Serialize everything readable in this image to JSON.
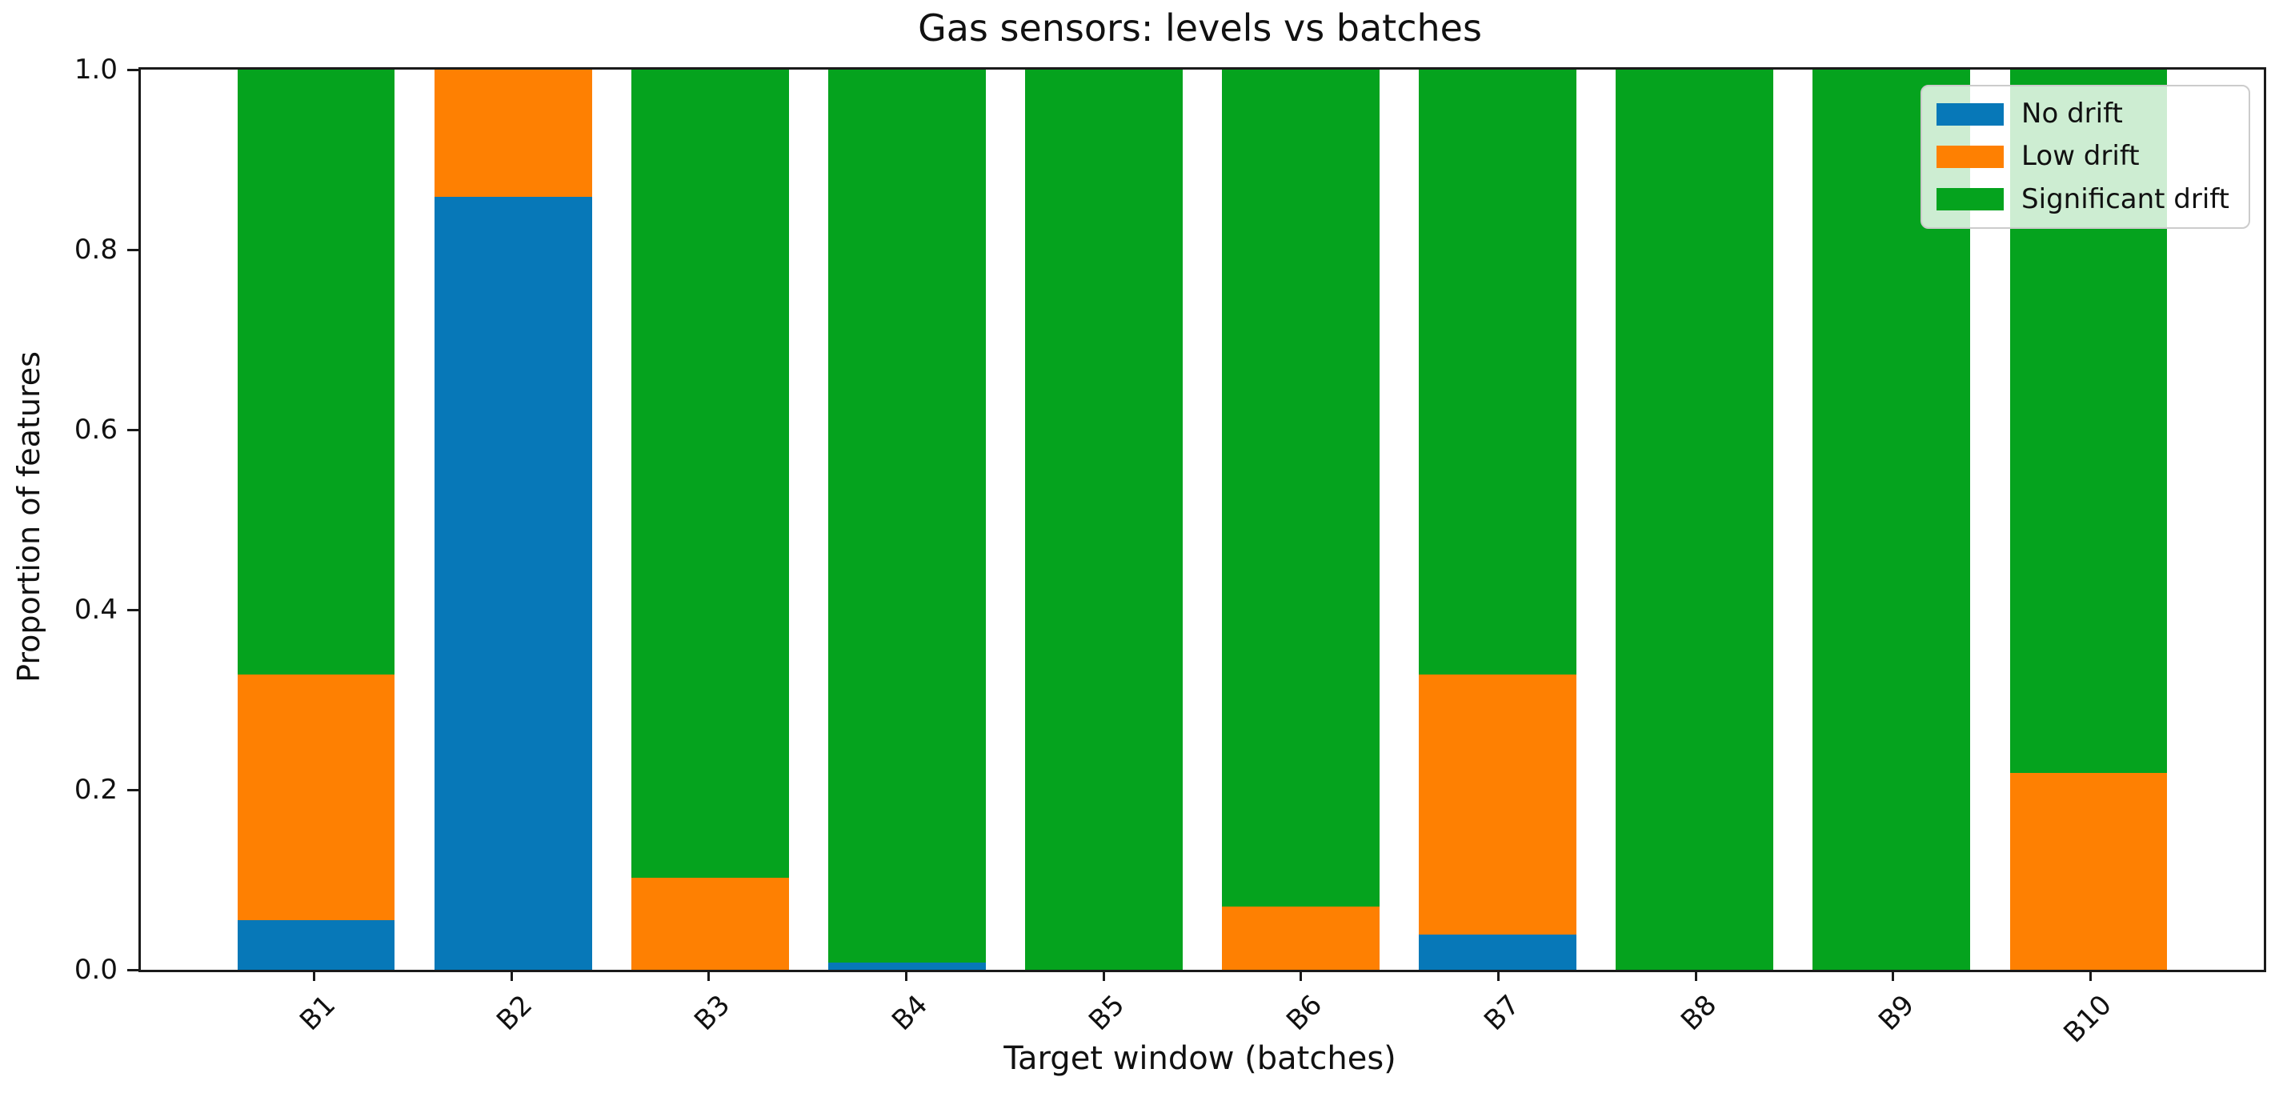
{
  "chart_data": {
    "type": "bar",
    "stacked": true,
    "title": "Gas sensors: levels vs batches",
    "xlabel": "Target window (batches)",
    "ylabel": "Proportion of features",
    "categories": [
      "B1",
      "B2",
      "B3",
      "B4",
      "B5",
      "B6",
      "B7",
      "B8",
      "B9",
      "B10"
    ],
    "series": [
      {
        "name": "No drift",
        "color": "#0778b8",
        "values": [
          0.055,
          0.859,
          0,
          0.008,
          0,
          0,
          0.039,
          0,
          0,
          0
        ]
      },
      {
        "name": "Low drift",
        "color": "#fe8002",
        "values": [
          0.273,
          0.141,
          0.102,
          0,
          0,
          0.07,
          0.289,
          0,
          0,
          0.219
        ]
      },
      {
        "name": "Significant drift",
        "color": "#05a31e",
        "values": [
          0.672,
          0,
          0.898,
          0.992,
          1.0,
          0.93,
          0.672,
          1.0,
          1.0,
          0.781
        ]
      }
    ],
    "ylim": [
      0.0,
      1.0
    ],
    "yticks": [
      {
        "value": 0.0,
        "label": "0.0"
      },
      {
        "value": 0.2,
        "label": "0.2"
      },
      {
        "value": 0.4,
        "label": "0.4"
      },
      {
        "value": 0.6,
        "label": "0.6"
      },
      {
        "value": 0.8,
        "label": "0.8"
      },
      {
        "value": 1.0,
        "label": "1.0"
      }
    ],
    "legend_position": "upper right",
    "grid": false,
    "colors": {
      "spine": "#1a1a1a",
      "text": "#111111",
      "background": "#ffffff"
    }
  }
}
